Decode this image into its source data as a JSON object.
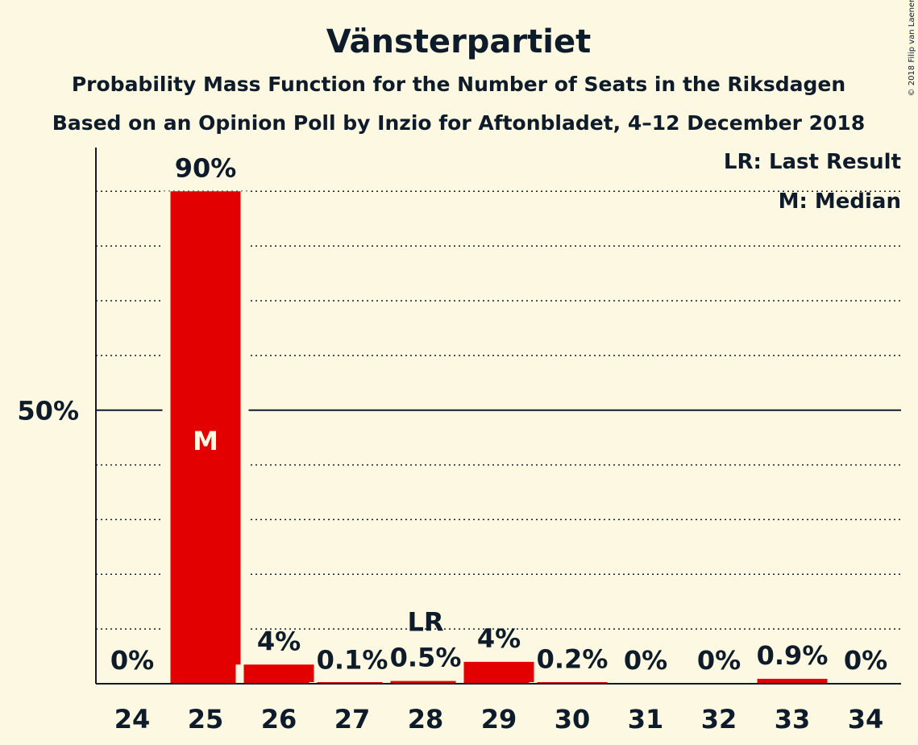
{
  "title": "Vänsterpartiet",
  "subtitle": "Probability Mass Function for the Number of Seats in the Riksdagen",
  "subtitle2": "Based on an Opinion Poll by Inzio for Aftonbladet, 4–12 December 2018",
  "copyright": "© 2018 Filip van Laenen",
  "legend": {
    "last_result": "LR: Last Result",
    "median": "M: Median"
  },
  "colors": {
    "background": "#fdf8e1",
    "bar": "#e30000",
    "text": "#0d1b2a"
  },
  "chart_data": {
    "type": "bar",
    "categories": [
      "24",
      "25",
      "26",
      "27",
      "28",
      "29",
      "30",
      "31",
      "32",
      "33",
      "34"
    ],
    "values": [
      0,
      90,
      3.5,
      0.1,
      0.5,
      4,
      0.2,
      0,
      0,
      0.9,
      0
    ],
    "value_labels": [
      "0%",
      "90%",
      "4%",
      "0.1%",
      "0.5%",
      "4%",
      "0.2%",
      "0%",
      "0%",
      "0.9%",
      "0%"
    ],
    "ylim": [
      0,
      98
    ],
    "yticks": [
      {
        "value": 50,
        "label": "50%"
      }
    ],
    "gridlines": [
      10,
      20,
      30,
      40,
      60,
      70,
      80,
      90
    ],
    "median": {
      "category": "25",
      "label": "M"
    },
    "last_result": {
      "category": "28",
      "label": "LR"
    }
  }
}
